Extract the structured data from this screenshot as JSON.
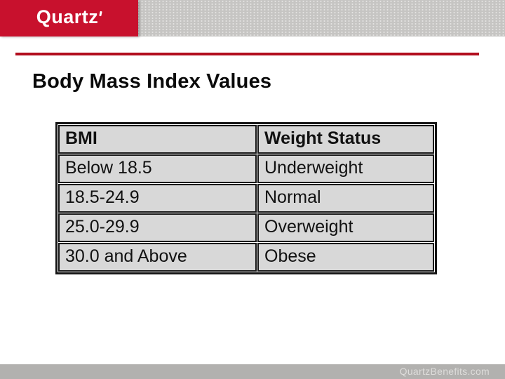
{
  "brand": {
    "logo_text": "Quartz",
    "brand_red": "#c8112d",
    "line_red": "#b20e1e"
  },
  "slide": {
    "title": "Body Mass Index Values"
  },
  "table": {
    "headers": [
      "BMI",
      "Weight Status"
    ],
    "rows": [
      [
        "Below 18.5",
        "Underweight"
      ],
      [
        "18.5-24.9",
        "Normal"
      ],
      [
        "25.0-29.9",
        "Overweight"
      ],
      [
        "30.0 and Above",
        "Obese"
      ]
    ],
    "cell_bg": "#d8d8d8",
    "border_color": "#161616"
  },
  "footer": {
    "website": "QuartzBenefits.com"
  }
}
